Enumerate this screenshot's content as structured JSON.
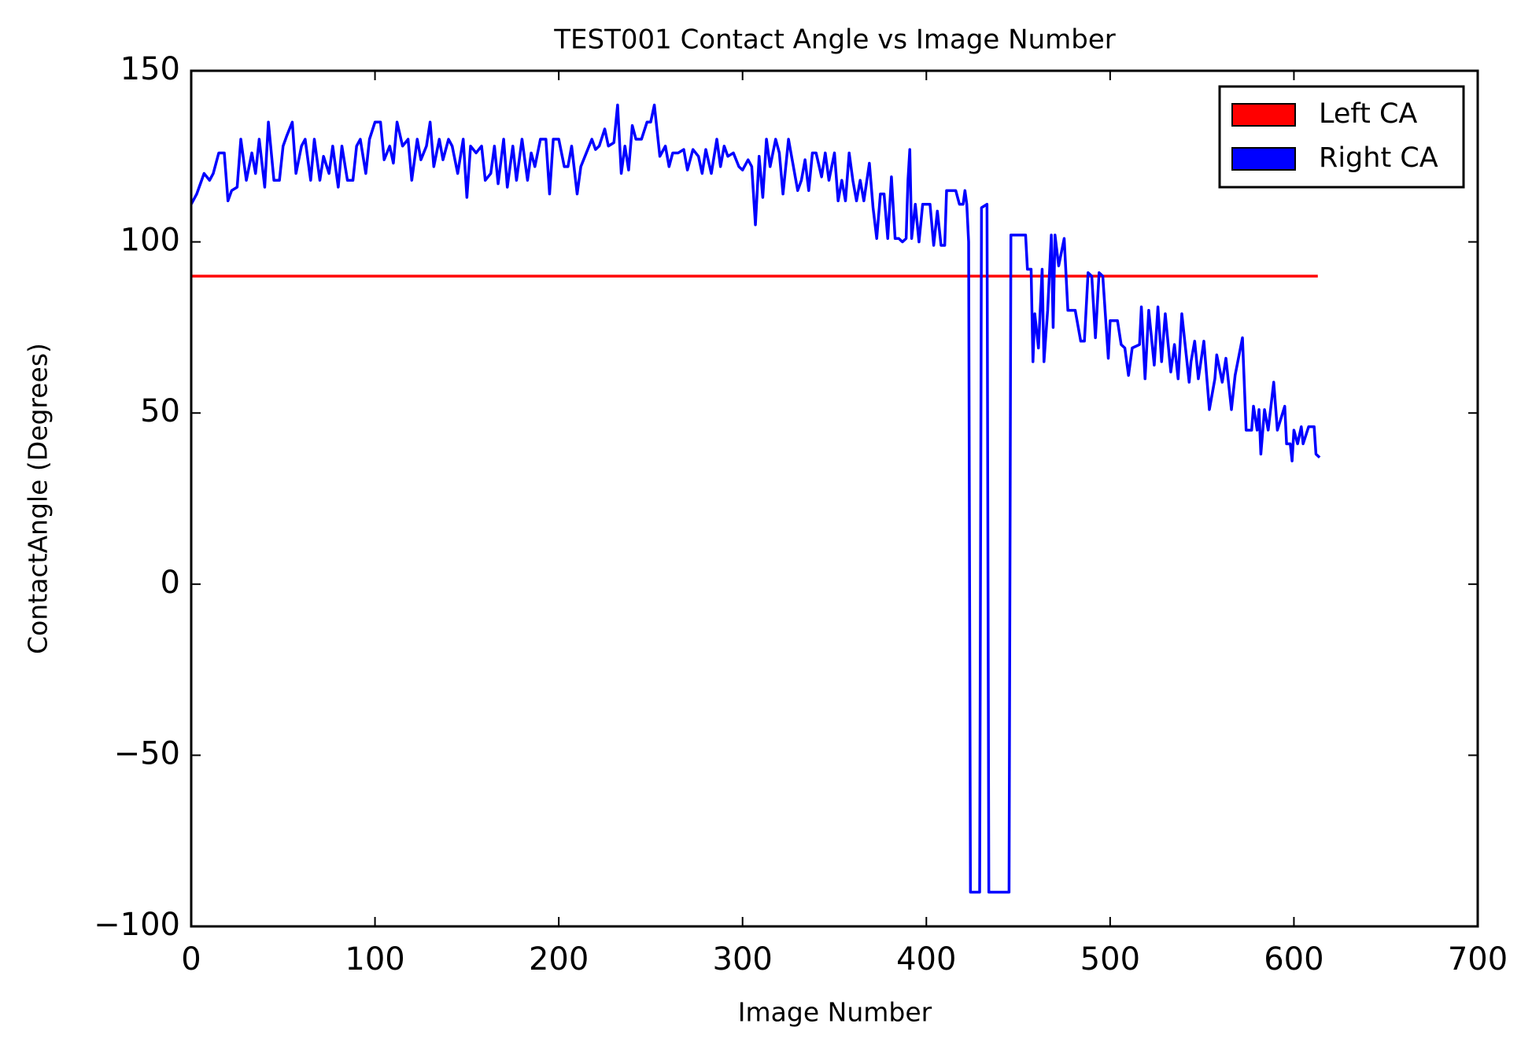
{
  "chart_data": {
    "type": "line",
    "title": "TEST001 Contact Angle vs Image Number",
    "x_label": "Image Number",
    "y_label": "ContactAngle (Degrees)",
    "xlim": [
      0,
      700
    ],
    "xticks": [
      0,
      100,
      200,
      300,
      400,
      500,
      600,
      700
    ],
    "ylim": [
      -100,
      150
    ],
    "yticks": [
      {
        "value": -100,
        "label": "−100"
      },
      {
        "value": -50,
        "label": "−50"
      },
      0,
      50,
      100,
      150
    ],
    "grid": false,
    "legend": "upper right",
    "series": [
      {
        "name": "Left CA",
        "color": "#ff0000",
        "x": [
          0,
          613
        ],
        "values": [
          90,
          90
        ]
      },
      {
        "name": "Right CA",
        "color": "#0000ff",
        "x": [
          0,
          3,
          5,
          7,
          10,
          12,
          15,
          18,
          20,
          22,
          25,
          27,
          30,
          33,
          35,
          37,
          40,
          42,
          45,
          48,
          50,
          52,
          55,
          57,
          60,
          62,
          65,
          67,
          70,
          72,
          75,
          77,
          80,
          82,
          85,
          88,
          90,
          92,
          95,
          97,
          100,
          103,
          105,
          108,
          110,
          112,
          115,
          118,
          120,
          123,
          125,
          128,
          130,
          132,
          135,
          137,
          140,
          142,
          145,
          148,
          150,
          152,
          155,
          158,
          160,
          163,
          165,
          167,
          170,
          172,
          175,
          177,
          180,
          183,
          185,
          187,
          190,
          193,
          195,
          197,
          200,
          203,
          205,
          207,
          210,
          212,
          215,
          218,
          220,
          222,
          225,
          227,
          230,
          232,
          234,
          236,
          238,
          240,
          242,
          245,
          248,
          250,
          252,
          255,
          258,
          260,
          262,
          265,
          268,
          270,
          273,
          276,
          278,
          280,
          283,
          286,
          288,
          290,
          292,
          295,
          298,
          300,
          303,
          305,
          307,
          309,
          311,
          313,
          315,
          318,
          320,
          322,
          325,
          327,
          330,
          332,
          334,
          336,
          338,
          340,
          343,
          345,
          347,
          350,
          352,
          354,
          356,
          358,
          360,
          362,
          364,
          366,
          369,
          371,
          373,
          375,
          377,
          379,
          381,
          383,
          385,
          387,
          389,
          390,
          391,
          392,
          394,
          396,
          398,
          402,
          404,
          406,
          408,
          410,
          411,
          413,
          416,
          418,
          420,
          421,
          422,
          423,
          424,
          429,
          430,
          433,
          434,
          445,
          446,
          454,
          455,
          457,
          458,
          459,
          461,
          463,
          464,
          466,
          468,
          469,
          470,
          472,
          475,
          477,
          481,
          484,
          486,
          488,
          490,
          492,
          494,
          496,
          499,
          500,
          504,
          506,
          508,
          510,
          512,
          516,
          517,
          519,
          521,
          524,
          526,
          528,
          530,
          533,
          535,
          537,
          539,
          543,
          544,
          546,
          548,
          551,
          554,
          557,
          558,
          561,
          563,
          566,
          568,
          572,
          574,
          577,
          578,
          580,
          581,
          582,
          584,
          586,
          589,
          591,
          595,
          596,
          598,
          599,
          600,
          602,
          604,
          605,
          608,
          611,
          612,
          614
        ],
        "values": [
          111,
          114,
          117,
          120,
          118,
          120,
          126,
          126,
          112,
          115,
          116,
          130,
          118,
          126,
          120,
          130,
          116,
          135,
          118,
          118,
          128,
          131,
          135,
          120,
          128,
          130,
          118,
          130,
          118,
          125,
          120,
          128,
          116,
          128,
          118,
          118,
          128,
          130,
          120,
          130,
          135,
          135,
          124,
          128,
          123,
          135,
          128,
          130,
          118,
          130,
          124,
          128,
          135,
          122,
          130,
          124,
          130,
          128,
          120,
          130,
          113,
          128,
          126,
          128,
          118,
          120,
          128,
          117,
          130,
          116,
          128,
          118,
          130,
          118,
          126,
          122,
          130,
          130,
          114,
          130,
          130,
          122,
          122,
          128,
          114,
          122,
          126,
          130,
          127,
          128,
          133,
          128,
          129,
          140,
          120,
          128,
          121,
          134,
          130,
          130,
          135,
          135,
          140,
          125,
          128,
          122,
          126,
          126,
          127,
          121,
          127,
          125,
          120,
          127,
          120,
          130,
          122,
          128,
          125,
          126,
          122,
          121,
          124,
          122,
          105,
          125,
          113,
          130,
          122,
          130,
          126,
          114,
          130,
          124,
          115,
          118,
          124,
          115,
          126,
          126,
          119,
          126,
          118,
          126,
          112,
          118,
          112,
          126,
          118,
          112,
          118,
          112,
          123,
          110,
          101,
          114,
          114,
          101,
          119,
          101,
          101,
          100,
          101,
          118,
          127,
          101,
          111,
          100,
          111,
          111,
          99,
          109,
          99,
          99,
          115,
          115,
          115,
          111,
          111,
          115,
          111,
          100,
          -90,
          -90,
          110,
          111,
          -90,
          -90,
          102,
          102,
          92,
          92,
          65,
          79,
          69,
          92,
          65,
          80,
          102,
          75,
          102,
          93,
          101,
          80,
          80,
          71,
          71,
          91,
          90,
          72,
          91,
          90,
          66,
          77,
          77,
          70,
          69,
          61,
          69,
          70,
          81,
          60,
          80,
          64,
          81,
          65,
          79,
          62,
          70,
          60,
          79,
          59,
          65,
          71,
          60,
          71,
          51,
          60,
          67,
          59,
          66,
          51,
          61,
          72,
          45,
          45,
          52,
          45,
          51,
          38,
          51,
          45,
          59,
          45,
          52,
          41,
          41,
          36,
          45,
          41,
          46,
          41,
          46,
          46,
          38,
          37
        ]
      }
    ]
  }
}
